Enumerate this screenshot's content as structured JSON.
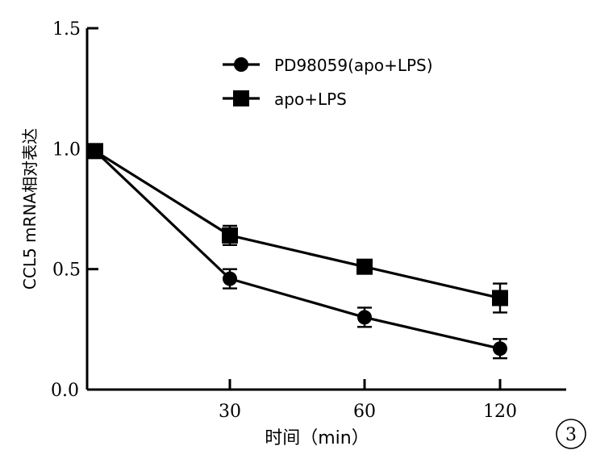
{
  "chart_data": {
    "type": "line",
    "xlabel": "时间（min）",
    "ylabel": "CCL5 mRNA相对表达",
    "x": [
      0,
      30,
      60,
      120
    ],
    "x_tick_labels": [
      "30",
      "60",
      "120"
    ],
    "y_tick_labels": [
      "0.0",
      "0.5",
      "1.0",
      "1.5"
    ],
    "ylim": [
      0,
      1.5
    ],
    "y_ticks": [
      0.0,
      0.5,
      1.0,
      1.5
    ],
    "grid": false,
    "legend_position": "top-right",
    "series": [
      {
        "name": "PD98059(apo+LPS)",
        "marker": "circle",
        "values": [
          0.99,
          0.46,
          0.3,
          0.17
        ],
        "errors": [
          0.02,
          0.04,
          0.04,
          0.04
        ]
      },
      {
        "name": "apo+LPS",
        "marker": "square",
        "values": [
          0.99,
          0.64,
          0.51,
          0.38
        ],
        "errors": [
          0.02,
          0.04,
          0.02,
          0.06
        ]
      }
    ],
    "annotation": "3"
  }
}
